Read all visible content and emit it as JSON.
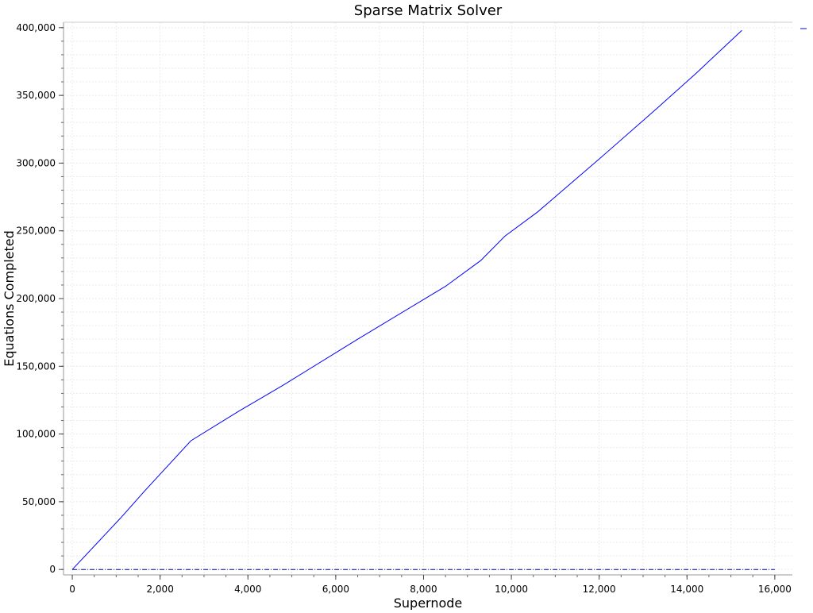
{
  "chart_data": {
    "type": "line",
    "title": "Sparse Matrix Solver",
    "xlabel": "Supernode",
    "ylabel": "Equations Completed",
    "xlim": [
      -200,
      16400
    ],
    "ylim": [
      -4000,
      404000
    ],
    "xticks": [
      0,
      2000,
      4000,
      6000,
      8000,
      10000,
      12000,
      14000,
      16000
    ],
    "xtick_labels": [
      "0",
      "2,000",
      "4,000",
      "6,000",
      "8,000",
      "10,000",
      "12,000",
      "14,000",
      "16,000"
    ],
    "yticks": [
      0,
      50000,
      100000,
      150000,
      200000,
      250000,
      300000,
      350000,
      400000
    ],
    "ytick_labels": [
      "0",
      "50,000",
      "100,000",
      "150,000",
      "200,000",
      "250,000",
      "300,000",
      "350,000",
      "400,000"
    ],
    "grid": true,
    "legend": "top-right",
    "series": [
      {
        "values": [
          [
            0,
            0
          ],
          [
            1100,
            38000
          ],
          [
            1650,
            58000
          ],
          [
            2700,
            95000
          ],
          [
            3800,
            117000
          ],
          [
            4800,
            136000
          ],
          [
            6500,
            170000
          ],
          [
            8500,
            209000
          ],
          [
            9300,
            228000
          ],
          [
            9850,
            246000
          ],
          [
            10600,
            264000
          ],
          [
            12000,
            303000
          ],
          [
            13300,
            340000
          ],
          [
            14200,
            366000
          ],
          [
            15250,
            398000
          ]
        ],
        "color": "#0000ff"
      },
      {
        "values": [
          [
            0,
            0
          ],
          [
            16000,
            0
          ]
        ],
        "color": "#000080",
        "style": "dash-dot"
      }
    ]
  }
}
